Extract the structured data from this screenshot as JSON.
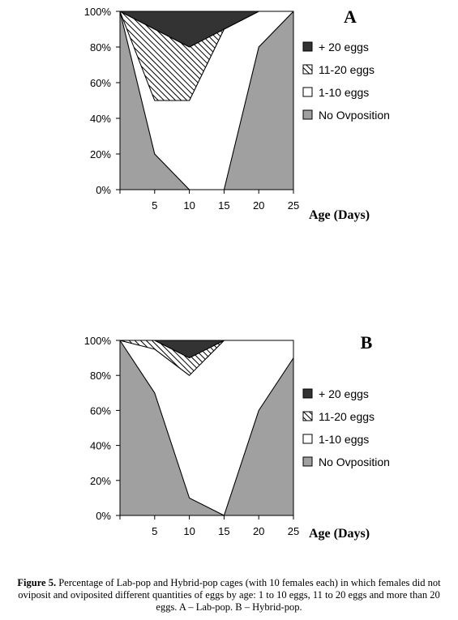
{
  "chart_data": [
    {
      "type": "area",
      "stacked": true,
      "title": "A",
      "xlabel": "Age (Days)",
      "ylabel": "",
      "x": [
        0,
        5,
        10,
        15,
        20,
        25
      ],
      "x_tick_labels": [
        "5",
        "10",
        "15",
        "20",
        "25"
      ],
      "x_ticks": [
        5,
        10,
        15,
        20,
        25
      ],
      "xlim": [
        0,
        25
      ],
      "ylim": [
        0,
        100
      ],
      "y_tick_labels": [
        "0%",
        "20%",
        "40%",
        "60%",
        "80%",
        "100%"
      ],
      "y_ticks": [
        0,
        20,
        40,
        60,
        80,
        100
      ],
      "grid": false,
      "legend_position": "right",
      "series": [
        {
          "name": "No Ovposition",
          "color": "#a0a0a0",
          "pattern": "solid",
          "values": [
            100,
            20,
            0,
            0,
            80,
            100
          ]
        },
        {
          "name": "1-10 eggs",
          "color": "#ffffff",
          "pattern": "solid",
          "values": [
            0,
            30,
            50,
            90,
            20,
            0
          ]
        },
        {
          "name": "11-20 eggs",
          "color": "#000000",
          "pattern": "hatch",
          "values": [
            0,
            40,
            30,
            0,
            0,
            0
          ]
        },
        {
          "name": "+ 20 eggs",
          "color": "#333333",
          "pattern": "solid",
          "values": [
            0,
            10,
            20,
            10,
            0,
            0
          ]
        }
      ]
    },
    {
      "type": "area",
      "stacked": true,
      "title": "B",
      "xlabel": "Age (Days)",
      "ylabel": "",
      "x": [
        0,
        5,
        10,
        15,
        20,
        25
      ],
      "x_tick_labels": [
        "5",
        "10",
        "15",
        "20",
        "25"
      ],
      "x_ticks": [
        5,
        10,
        15,
        20,
        25
      ],
      "xlim": [
        0,
        25
      ],
      "ylim": [
        0,
        100
      ],
      "y_tick_labels": [
        "0%",
        "20%",
        "40%",
        "60%",
        "80%",
        "100%"
      ],
      "y_ticks": [
        0,
        20,
        40,
        60,
        80,
        100
      ],
      "grid": false,
      "legend_position": "right",
      "series": [
        {
          "name": "No Ovposition",
          "color": "#a0a0a0",
          "pattern": "solid",
          "values": [
            100,
            70,
            10,
            0,
            60,
            90
          ]
        },
        {
          "name": "1-10 eggs",
          "color": "#ffffff",
          "pattern": "solid",
          "values": [
            0,
            25,
            70,
            100,
            40,
            10
          ]
        },
        {
          "name": "11-20 eggs",
          "color": "#000000",
          "pattern": "hatch",
          "values": [
            0,
            5,
            10,
            0,
            0,
            0
          ]
        },
        {
          "name": "+ 20 eggs",
          "color": "#333333",
          "pattern": "solid",
          "values": [
            0,
            0,
            10,
            0,
            0,
            0
          ]
        }
      ]
    }
  ],
  "caption": {
    "label": "Figure 5.",
    "text": " Percentage of Lab-pop and Hybrid-pop cages (with 10 females each) in which females did not oviposit and oviposited different quantities of eggs by age: 1 to 10 eggs, 11 to 20 eggs and more than 20 eggs. A – Lab-pop. B – Hybrid-pop."
  }
}
